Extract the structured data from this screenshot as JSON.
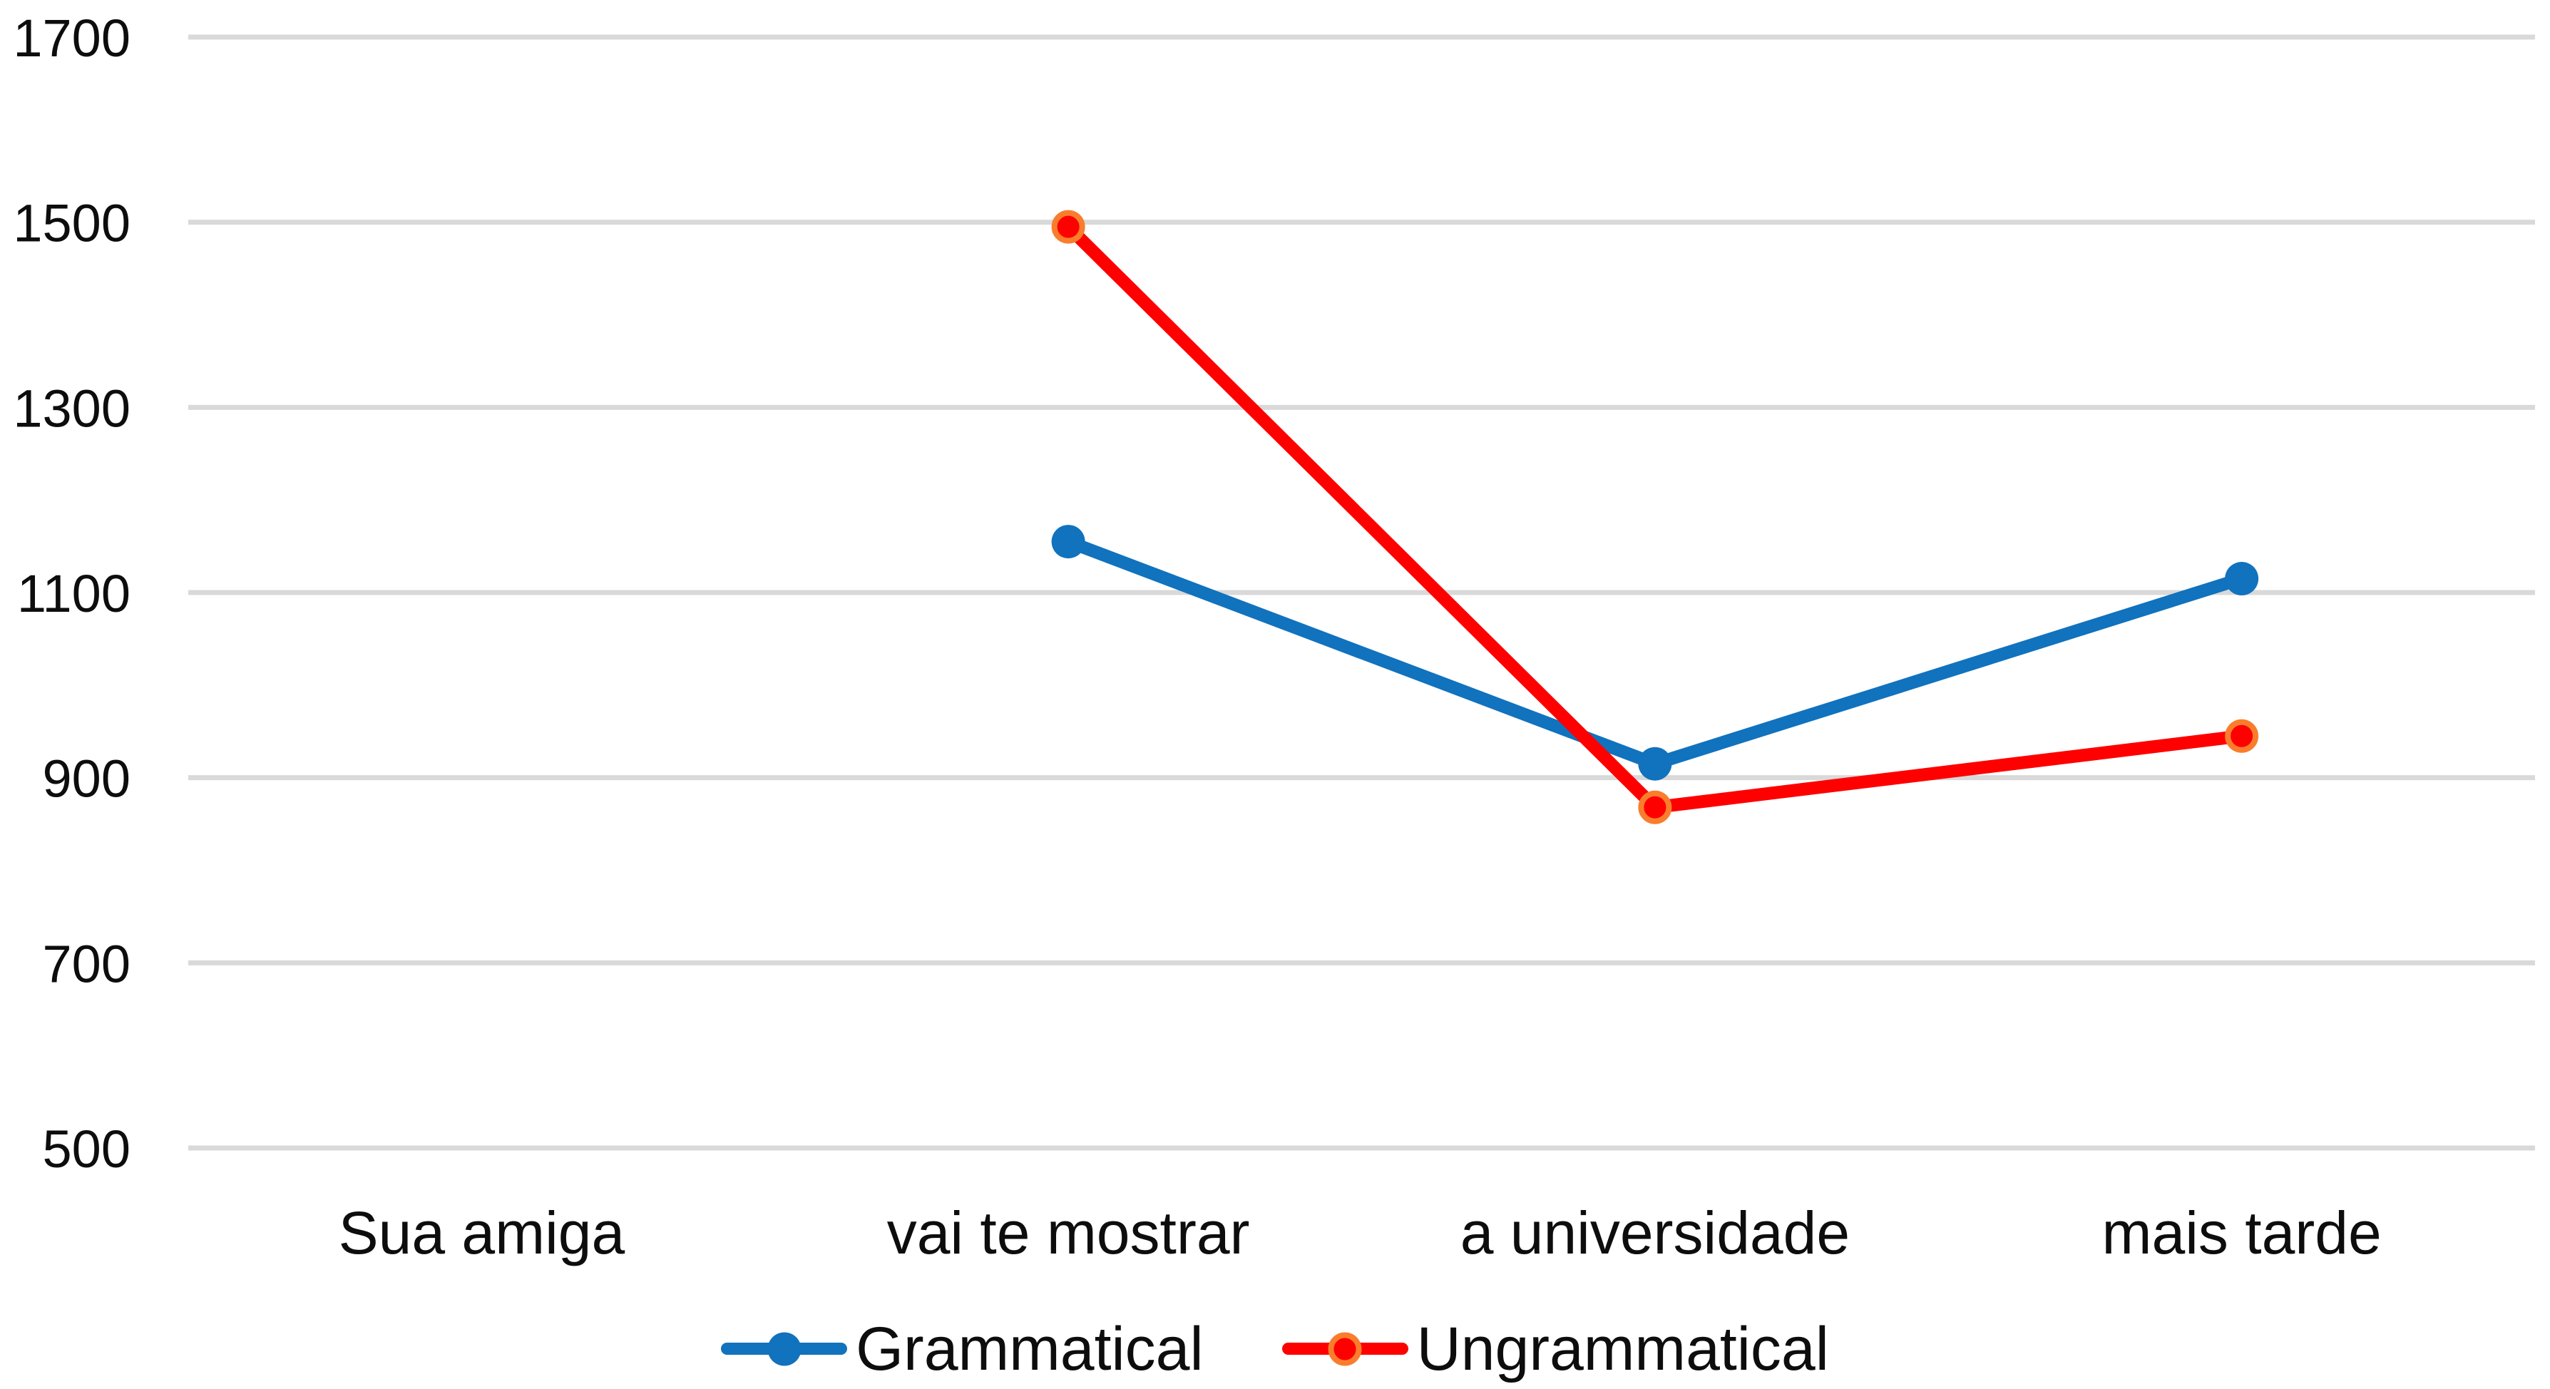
{
  "chart_data": {
    "type": "line",
    "title": "",
    "xlabel": "",
    "ylabel": "",
    "categories": [
      "Sua amiga",
      "vai te mostrar",
      "a universidade",
      "mais tarde"
    ],
    "series": [
      {
        "name": "Grammatical",
        "values": [
          null,
          1155,
          915,
          1115
        ],
        "color": "#1172BD",
        "marker": {
          "fill": "#1172BD",
          "stroke": "none",
          "stroke_width": 0,
          "radius": 23.5
        }
      },
      {
        "name": "Ungrammatical",
        "values": [
          null,
          1495,
          868,
          945
        ],
        "color": "#FF0000",
        "marker": {
          "fill": "#FF0000",
          "stroke": "#F97D2C",
          "stroke_width": 8,
          "radius": 19.5
        }
      }
    ],
    "ylim": [
      500,
      1700
    ],
    "yticks": [
      500,
      700,
      900,
      1100,
      1300,
      1500,
      1700
    ],
    "grid": true,
    "gridline_color": "#D9D9D9",
    "tick_label_color": "#0d0d0d",
    "legend_position": "bottom"
  }
}
